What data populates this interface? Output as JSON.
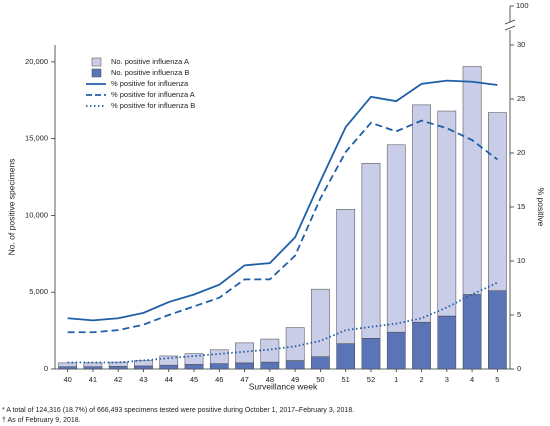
{
  "chart_data": {
    "type": "bar",
    "categories": [
      "40",
      "41",
      "42",
      "43",
      "44",
      "45",
      "46",
      "47",
      "48",
      "49",
      "50",
      "51",
      "52",
      "1",
      "2",
      "3",
      "4",
      "5"
    ],
    "x_label": "Surveillance week",
    "y_label": "No. of positive specimens",
    "y2_label": "% positive",
    "ylim": [
      0,
      21100
    ],
    "yticks": [
      0,
      {
        "value": 5000,
        "label": "5,000"
      },
      {
        "value": 10000,
        "label": "10,000"
      },
      {
        "value": 15000,
        "label": "15,000"
      },
      {
        "value": 20000,
        "label": "20,000"
      }
    ],
    "y2lim": [
      0,
      30
    ],
    "y2ticks": [
      0,
      5,
      10,
      15,
      20,
      25,
      30
    ],
    "y2_top_tick": 100,
    "series": [
      {
        "name": "No. positive influenza B",
        "kind": "bar",
        "color": "#5b74b8",
        "values": [
          150,
          150,
          170,
          200,
          250,
          300,
          350,
          400,
          450,
          550,
          800,
          1650,
          2000,
          2400,
          3050,
          3450,
          4850,
          5100
        ]
      },
      {
        "name": "No. positive influenza A",
        "kind": "bar",
        "color": "#c9cde8",
        "values": [
          250,
          250,
          280,
          350,
          600,
          700,
          900,
          1300,
          1500,
          2150,
          4400,
          8750,
          11400,
          12200,
          14150,
          13350,
          14850,
          11600
        ]
      },
      {
        "name": "% positive for influenza",
        "kind": "line",
        "axis": "y2",
        "color": "#1f5fa8",
        "dash": "solid",
        "values": [
          4.7,
          4.5,
          4.7,
          5.2,
          6.2,
          6.9,
          7.8,
          9.6,
          9.8,
          12.2,
          17.4,
          22.4,
          25.2,
          24.8,
          26.4,
          26.7,
          26.6,
          26.3
        ]
      },
      {
        "name": "% positive for influenza A",
        "kind": "line",
        "axis": "y2",
        "color": "#1f5fa8",
        "dash": "dashed",
        "values": [
          3.4,
          3.4,
          3.6,
          4.1,
          5.0,
          5.8,
          6.6,
          8.3,
          8.3,
          10.5,
          15.8,
          20.1,
          22.8,
          22.0,
          23.0,
          22.3,
          21.2,
          19.4
        ]
      },
      {
        "name": "% positive for influenza B",
        "kind": "line",
        "axis": "y2",
        "color": "#1f5fa8",
        "dash": "dotted",
        "values": [
          0.6,
          0.6,
          0.6,
          0.8,
          1.0,
          1.2,
          1.4,
          1.6,
          1.8,
          2.1,
          2.6,
          3.6,
          3.9,
          4.2,
          4.7,
          5.7,
          6.9,
          8.0
        ]
      }
    ],
    "footnotes": [
      "* A total of 124,316 (18.7%) of 666,493 specimens tested were positive during October 1, 2017–February 3, 2018.",
      "† As of February 9, 2018."
    ]
  }
}
